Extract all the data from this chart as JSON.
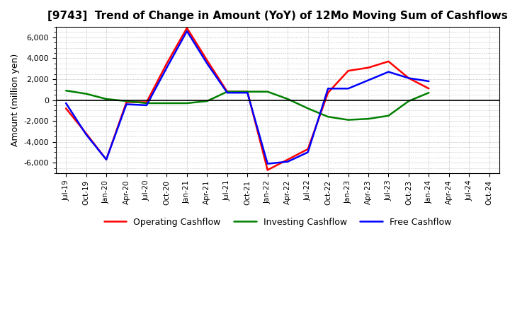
{
  "title": "[9743]  Trend of Change in Amount (YoY) of 12Mo Moving Sum of Cashflows",
  "ylabel": "Amount (million yen)",
  "x_labels": [
    "Jul-19",
    "Oct-19",
    "Jan-20",
    "Apr-20",
    "Jul-20",
    "Oct-20",
    "Jan-21",
    "Apr-21",
    "Jul-21",
    "Oct-21",
    "Jan-22",
    "Apr-22",
    "Jul-22",
    "Oct-22",
    "Jan-23",
    "Apr-23",
    "Jul-23",
    "Oct-23",
    "Jan-24",
    "Apr-24",
    "Jul-24",
    "Oct-24"
  ],
  "operating": [
    -800,
    -3200,
    -5700,
    -200,
    -200,
    3500,
    6900,
    3800,
    800,
    800,
    -6700,
    -5700,
    -4700,
    700,
    2800,
    3100,
    3700,
    2100,
    1100,
    null,
    null,
    null
  ],
  "investing": [
    900,
    600,
    100,
    -100,
    -300,
    -300,
    -300,
    -100,
    800,
    800,
    800,
    100,
    -800,
    -1600,
    -1900,
    -1800,
    -1500,
    -100,
    700,
    null,
    null,
    null
  ],
  "free": [
    -300,
    -3300,
    -5700,
    -400,
    -500,
    3100,
    6600,
    3500,
    700,
    700,
    -6100,
    -5900,
    -5000,
    1100,
    1100,
    1900,
    2700,
    2100,
    1800,
    null,
    null,
    null
  ],
  "operating_color": "#FF0000",
  "investing_color": "#008000",
  "free_color": "#0000FF",
  "ylim": [
    -7000,
    7000
  ],
  "yticks": [
    -6000,
    -4000,
    -2000,
    0,
    2000,
    4000,
    6000
  ],
  "grid_color": "#999999",
  "bg_color": "#ffffff",
  "legend": [
    "Operating Cashflow",
    "Investing Cashflow",
    "Free Cashflow"
  ]
}
